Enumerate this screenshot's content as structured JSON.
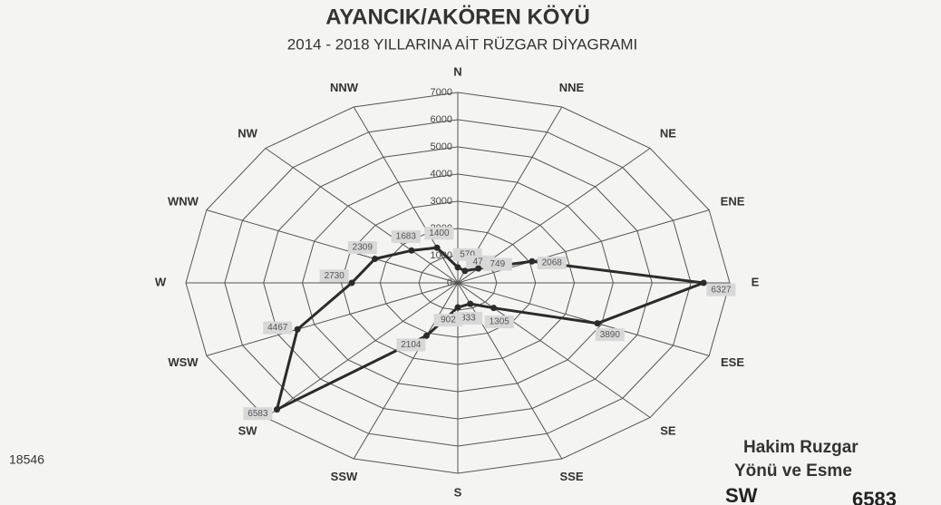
{
  "chart_data": {
    "type": "radar",
    "title": "AYANCIK/AKÖREN KÖYÜ",
    "subtitle": "2014 - 2018 YILLARINA AİT RÜZGAR DİYAGRAMI",
    "categories": [
      "N",
      "NNE",
      "NE",
      "ENE",
      "E",
      "ESE",
      "SE",
      "SSE",
      "S",
      "SSW",
      "SW",
      "WSW",
      "W",
      "WNW",
      "NW",
      "NNW"
    ],
    "series": [
      {
        "name": "Rüzgar",
        "color": "#2b2b2b",
        "values": [
          570,
          478,
          749,
          2068,
          6327,
          3890,
          1305,
          833,
          902,
          2104,
          6583,
          4467,
          2730,
          2309,
          1683,
          1400
        ]
      }
    ],
    "ylim": [
      0,
      7000
    ],
    "yticks": [
      0,
      1000,
      2000,
      3000,
      4000,
      5000,
      6000,
      7000
    ],
    "annotations": {
      "total": "18546",
      "note_line1": "Hakim Ruzgar",
      "note_line2": "Yönü ve Esme",
      "dominant_direction": "SW",
      "dominant_value": "6583"
    }
  }
}
